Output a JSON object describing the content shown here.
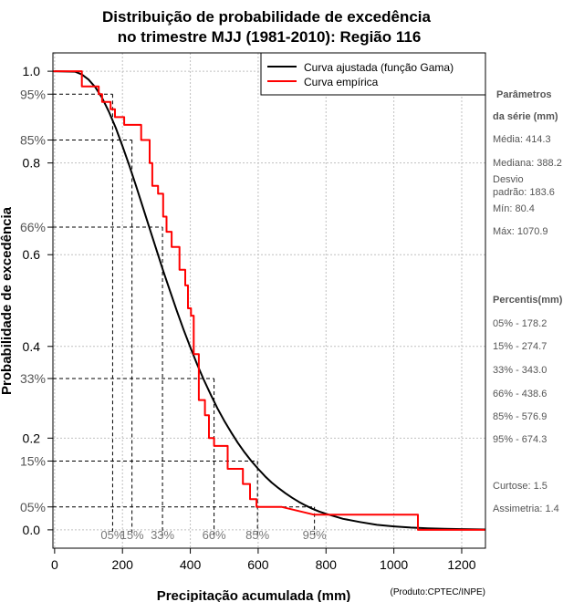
{
  "chart_data": {
    "type": "line",
    "title_line1": "Distribuição de probabilidade de excedência",
    "title_line2": "no trimestre MJJ (1981-2010): Região 116",
    "xlabel": "Precipitação acumulada (mm)",
    "ylabel": "Probabilidade de excedência",
    "xlim": [
      -5,
      1270
    ],
    "ylim": [
      -0.04,
      1.04
    ],
    "x_ticks": [
      0,
      200,
      400,
      600,
      800,
      1000,
      1200
    ],
    "y_ticks": [
      {
        "value": 0.0,
        "label": "0.0"
      },
      {
        "value": 0.2,
        "label": "0.2"
      },
      {
        "value": 0.4,
        "label": "0.4"
      },
      {
        "value": 0.6,
        "label": "0.6"
      },
      {
        "value": 0.8,
        "label": "0.8"
      },
      {
        "value": 1.0,
        "label": "1.0"
      }
    ],
    "y_pct_ticks": [
      {
        "value": 0.05,
        "label": "05%"
      },
      {
        "value": 0.15,
        "label": "15%"
      },
      {
        "value": 0.33,
        "label": "33%"
      },
      {
        "value": 0.66,
        "label": "66%"
      },
      {
        "value": 0.85,
        "label": "85%"
      },
      {
        "value": 0.95,
        "label": "95%"
      }
    ],
    "grid": true,
    "legend_position": "top-right",
    "series": [
      {
        "name": "Curva ajustada (função Gama)",
        "color": "#000000",
        "x": [
          0,
          60,
          80,
          100,
          120,
          140,
          160,
          180,
          200,
          220,
          240,
          260,
          280,
          300,
          320,
          340,
          360,
          380,
          400,
          420,
          440,
          460,
          480,
          500,
          520,
          540,
          560,
          580,
          600,
          620,
          640,
          660,
          680,
          700,
          720,
          740,
          760,
          780,
          800,
          850,
          900,
          950,
          1000,
          1050,
          1100,
          1150,
          1200,
          1270
        ],
        "y": [
          1.0,
          0.999,
          0.993,
          0.982,
          0.965,
          0.942,
          0.912,
          0.877,
          0.837,
          0.795,
          0.75,
          0.704,
          0.657,
          0.611,
          0.565,
          0.521,
          0.478,
          0.437,
          0.398,
          0.361,
          0.327,
          0.295,
          0.265,
          0.238,
          0.213,
          0.19,
          0.169,
          0.15,
          0.133,
          0.117,
          0.103,
          0.091,
          0.08,
          0.07,
          0.061,
          0.053,
          0.046,
          0.04,
          0.035,
          0.024,
          0.017,
          0.011,
          0.0075,
          0.005,
          0.0034,
          0.0022,
          0.0015,
          0.0008
        ]
      },
      {
        "name": "Curva empírica",
        "color": "#ff0000",
        "x": [
          -5,
          80.4,
          80.4,
          130,
          130,
          140,
          140,
          165,
          165,
          178,
          178,
          205,
          205,
          255,
          255,
          280,
          280,
          288,
          288,
          305,
          305,
          320,
          320,
          330,
          330,
          345,
          345,
          368,
          368,
          385,
          385,
          393,
          393,
          402,
          402,
          410,
          410,
          425,
          425,
          443,
          443,
          455,
          455,
          470,
          470,
          510,
          510,
          555,
          555,
          576,
          576,
          595,
          595,
          670,
          670,
          765,
          765,
          780,
          780,
          1070.9,
          1070.9,
          1270
        ],
        "y": [
          1.0,
          1.0,
          0.967,
          0.967,
          0.95,
          0.95,
          0.933,
          0.933,
          0.917,
          0.917,
          0.9,
          0.9,
          0.883,
          0.883,
          0.85,
          0.85,
          0.8,
          0.8,
          0.75,
          0.75,
          0.733,
          0.733,
          0.683,
          0.683,
          0.65,
          0.65,
          0.617,
          0.617,
          0.567,
          0.567,
          0.533,
          0.533,
          0.483,
          0.483,
          0.467,
          0.467,
          0.383,
          0.383,
          0.283,
          0.283,
          0.25,
          0.25,
          0.2,
          0.2,
          0.183,
          0.183,
          0.133,
          0.133,
          0.1,
          0.1,
          0.067,
          0.067,
          0.05,
          0.05,
          0.05,
          0.033,
          0.033,
          0.033,
          0.033,
          0.033,
          0.0,
          0.0
        ]
      }
    ],
    "percentiles": [
      {
        "p": 0.05,
        "value": 178.2,
        "label": "05%"
      },
      {
        "p": 0.15,
        "value": 274.7,
        "label": "15%"
      },
      {
        "p": 0.33,
        "value": 343.0,
        "label": "33%"
      },
      {
        "p": 0.66,
        "value": 438.6,
        "label": "66%"
      },
      {
        "p": 0.85,
        "value": 576.9,
        "label": "85%"
      },
      {
        "p": 0.95,
        "value": 674.3,
        "label": "95%"
      }
    ],
    "guide_lines": [
      {
        "x": 171,
        "y": 0.95
      },
      {
        "x": 228,
        "y": 0.85
      },
      {
        "x": 318,
        "y": 0.66
      },
      {
        "x": 470,
        "y": 0.33
      },
      {
        "x": 598,
        "y": 0.15
      },
      {
        "x": 766,
        "y": 0.05
      }
    ],
    "x_pct_labels": [
      {
        "x": 171,
        "label": "05%"
      },
      {
        "x": 228,
        "label": "15%"
      },
      {
        "x": 318,
        "label": "33%"
      },
      {
        "x": 470,
        "label": "66%"
      },
      {
        "x": 598,
        "label": "85%"
      },
      {
        "x": 766,
        "label": "95%"
      }
    ]
  },
  "sidebar": {
    "params_head1": "Parâmetros",
    "params_head2": "da série (mm)",
    "media": "Média: 414.3",
    "mediana": "Mediana: 388.2",
    "desvio1": "Desvio",
    "desvio2": "padrão: 183.6",
    "min": "Mín: 80.4",
    "max": "Máx: 1070.9",
    "percentis_head": "Percentis(mm)",
    "p05": "05% - 178.2",
    "p15": "15% - 274.7",
    "p33": "33% - 343.0",
    "p66": "66% - 438.6",
    "p85": "85% - 576.9",
    "p95": "95% - 674.3",
    "curtose": "Curtose: 1.5",
    "assimetria": "Assimetria: 1.4"
  },
  "credit": "(Produto:CPTEC/INPE)"
}
